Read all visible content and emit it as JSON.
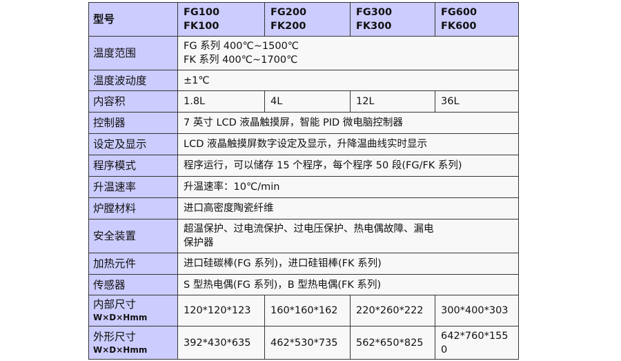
{
  "header": {
    "label": "型号",
    "models": [
      [
        "FG100",
        "FK100"
      ],
      [
        "FG200",
        "FK200"
      ],
      [
        "FG300",
        "FK300"
      ],
      [
        "FG600",
        "FK600"
      ]
    ]
  },
  "rows": [
    {
      "label": "温度范围",
      "lines": [
        "FG 系列 400℃~1500℃",
        "FK 系列 400℃~1700℃"
      ]
    },
    {
      "label": "温度波动度",
      "value": "±1℃"
    },
    {
      "label": "内容积",
      "cells": [
        "1.8L",
        "4L",
        "12L",
        "36L"
      ]
    },
    {
      "label": "控制器",
      "value": "7 英寸 LCD 液晶触摸屏，智能 PID 微电脑控制器"
    },
    {
      "label": "设定及显示",
      "value": "LCD 液晶触摸屏数字设定及显示，升降温曲线实时显示"
    },
    {
      "label": "程序模式",
      "value": "程序运行，可以储存 15 个程序，每个程序 50 段(FG/FK 系列)"
    },
    {
      "label": "升温速率",
      "value": "升温速率：10℃/min"
    },
    {
      "label": "炉膛材料",
      "value": "进口高密度陶瓷纤维"
    },
    {
      "label": "安全装置",
      "value": "超温保护、过电流保护、过电压保护、热电偶故障、漏电保护器"
    },
    {
      "label": "加热元件",
      "value": "进口硅碳棒(FG 系列)，进口硅钼棒(FK 系列)"
    },
    {
      "label": "传感器",
      "value": "S 型热电偶(FG 系列)，B 型热电偶(FK 系列)"
    },
    {
      "label": "内部尺寸",
      "unit": "W×D×Hmm",
      "cells": [
        "120*120*123",
        "160*160*162",
        "220*260*222",
        "300*400*303"
      ]
    },
    {
      "label": "外形尺寸",
      "unit": "W×D×Hmm",
      "cells": [
        "392*430*635",
        "462*530*735",
        "562*650*825",
        "642*760*1550"
      ]
    }
  ],
  "colors": {
    "header_bg": "#ccccff",
    "cell_bg": "#f8f8f8",
    "border": "#333333"
  }
}
